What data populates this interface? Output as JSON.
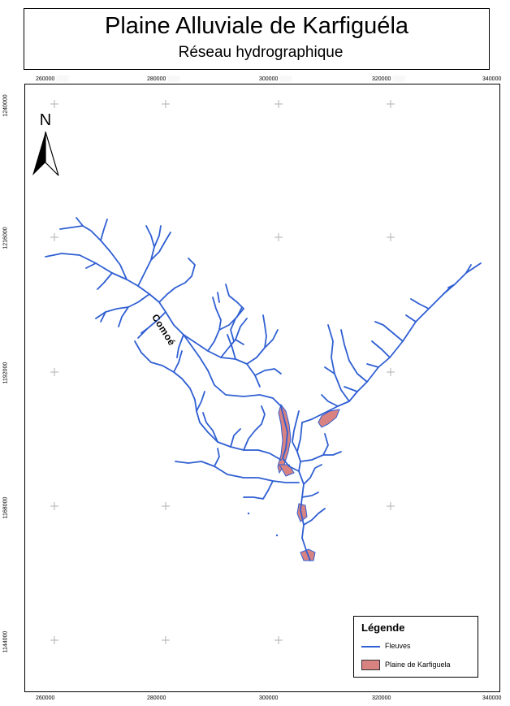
{
  "map": {
    "title": "Plaine Alluviale de Karfiguéla",
    "subtitle": "Réseau hydrographique",
    "north_label": "N",
    "river_label": "Comoé",
    "x_ticks": [
      "260000",
      "280000",
      "300000",
      "320000",
      "340000"
    ],
    "y_ticks": [
      "1240000",
      "1216000",
      "1192000",
      "1168000",
      "1144000"
    ],
    "legend": {
      "title": "Légende",
      "items": [
        {
          "label": "Fleuves",
          "symbol": "line",
          "color": "#2f5fd3"
        },
        {
          "label": "Plaine de Karfiguela",
          "symbol": "polygon",
          "color": "#d98282"
        }
      ]
    },
    "colors": {
      "river": "#2f5fd3",
      "plain_fill": "#d98282",
      "graticule": "#b0b0b0"
    }
  }
}
